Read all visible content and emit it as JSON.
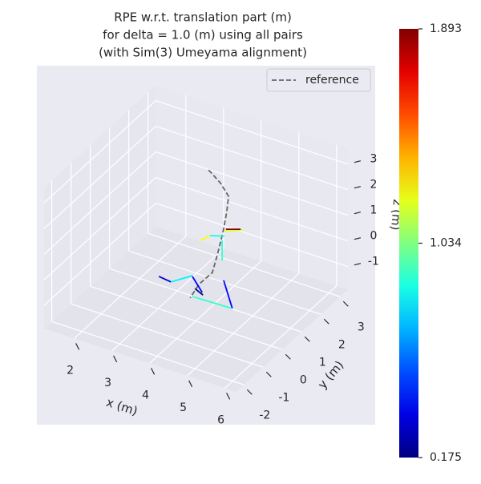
{
  "chart_data": {
    "type": "line3d",
    "title": [
      "RPE w.r.t. translation part (m)",
      "for delta = 1.0 (m) using all pairs",
      "(with Sim(3) Umeyama alignment)"
    ],
    "xlabel": "x (m)",
    "ylabel": "y (m)",
    "zlabel": "z (m)",
    "xlim": [
      1.2,
      6.3
    ],
    "ylim": [
      -2.4,
      3.4
    ],
    "zlim": [
      -1.9,
      3.6
    ],
    "xticks": [
      2,
      3,
      4,
      5,
      6
    ],
    "yticks": [
      -2,
      -1,
      0,
      1,
      2,
      3
    ],
    "zticks": [
      -1,
      0,
      1,
      2,
      3
    ],
    "grid": true,
    "legend": "upper right",
    "reference": {
      "name": "reference",
      "color": "#666666",
      "x": [
        3.83,
        4.14,
        4.36,
        4.31,
        4.21,
        4.08,
        3.93,
        3.57,
        3.34
      ],
      "y": [
        1,
        1,
        1,
        1,
        1,
        1,
        1,
        1,
        1
      ],
      "z": [
        3.22,
        2.87,
        2.45,
        1.8,
        0.97,
        0.13,
        -0.73,
        -1.37,
        -2.01
      ]
    },
    "segments": [
      {
        "x": [
          3.61,
          3.87
        ],
        "y": [
          1,
          1
        ],
        "z": [
          0.37,
          0.68
        ],
        "value": 1.25
      },
      {
        "x": [
          3.87,
          4.25
        ],
        "y": [
          1,
          1
        ],
        "z": [
          0.68,
          0.84
        ],
        "value": 0.85
      },
      {
        "x": [
          4.25,
          4.74
        ],
        "y": [
          1,
          1
        ],
        "z": [
          1.05,
          1.32
        ],
        "value": 1.2
      },
      {
        "x": [
          4.29,
          4.68
        ],
        "y": [
          1,
          1
        ],
        "z": [
          1.13,
          1.32
        ],
        "value": 1.893
      },
      {
        "x": [
          4.19,
          4.19
        ],
        "y": [
          1,
          1
        ],
        "z": [
          0.65,
          -0.13
        ],
        "value": 0.9
      },
      {
        "x": [
          4.23,
          4.46
        ],
        "y": [
          1,
          1
        ],
        "z": [
          -0.89,
          -1.88
        ],
        "value": 0.4
      },
      {
        "x": [
          4.46,
          3.4
        ],
        "y": [
          1,
          1
        ],
        "z": [
          -1.88,
          -1.92
        ],
        "value": 0.9
      },
      {
        "x": [
          3.4,
          3.66
        ],
        "y": [
          1,
          1
        ],
        "z": [
          -1.14,
          -1.64
        ],
        "value": 0.4
      },
      {
        "x": [
          3.47,
          3.68
        ],
        "y": [
          1,
          1
        ],
        "z": [
          -1.58,
          -1.73
        ],
        "value": 0.2
      },
      {
        "x": [
          2.51,
          2.83
        ],
        "y": [
          1,
          1
        ],
        "z": [
          -1.57,
          -1.63
        ],
        "value": 0.3
      },
      {
        "x": [
          2.83,
          3.4
        ],
        "y": [
          1,
          1
        ],
        "z": [
          -1.63,
          -1.11
        ],
        "value": 0.8
      }
    ],
    "colormap": "jet",
    "clim": [
      0.175,
      1.893
    ],
    "cticks": [
      0.175,
      1.034,
      1.893
    ]
  }
}
